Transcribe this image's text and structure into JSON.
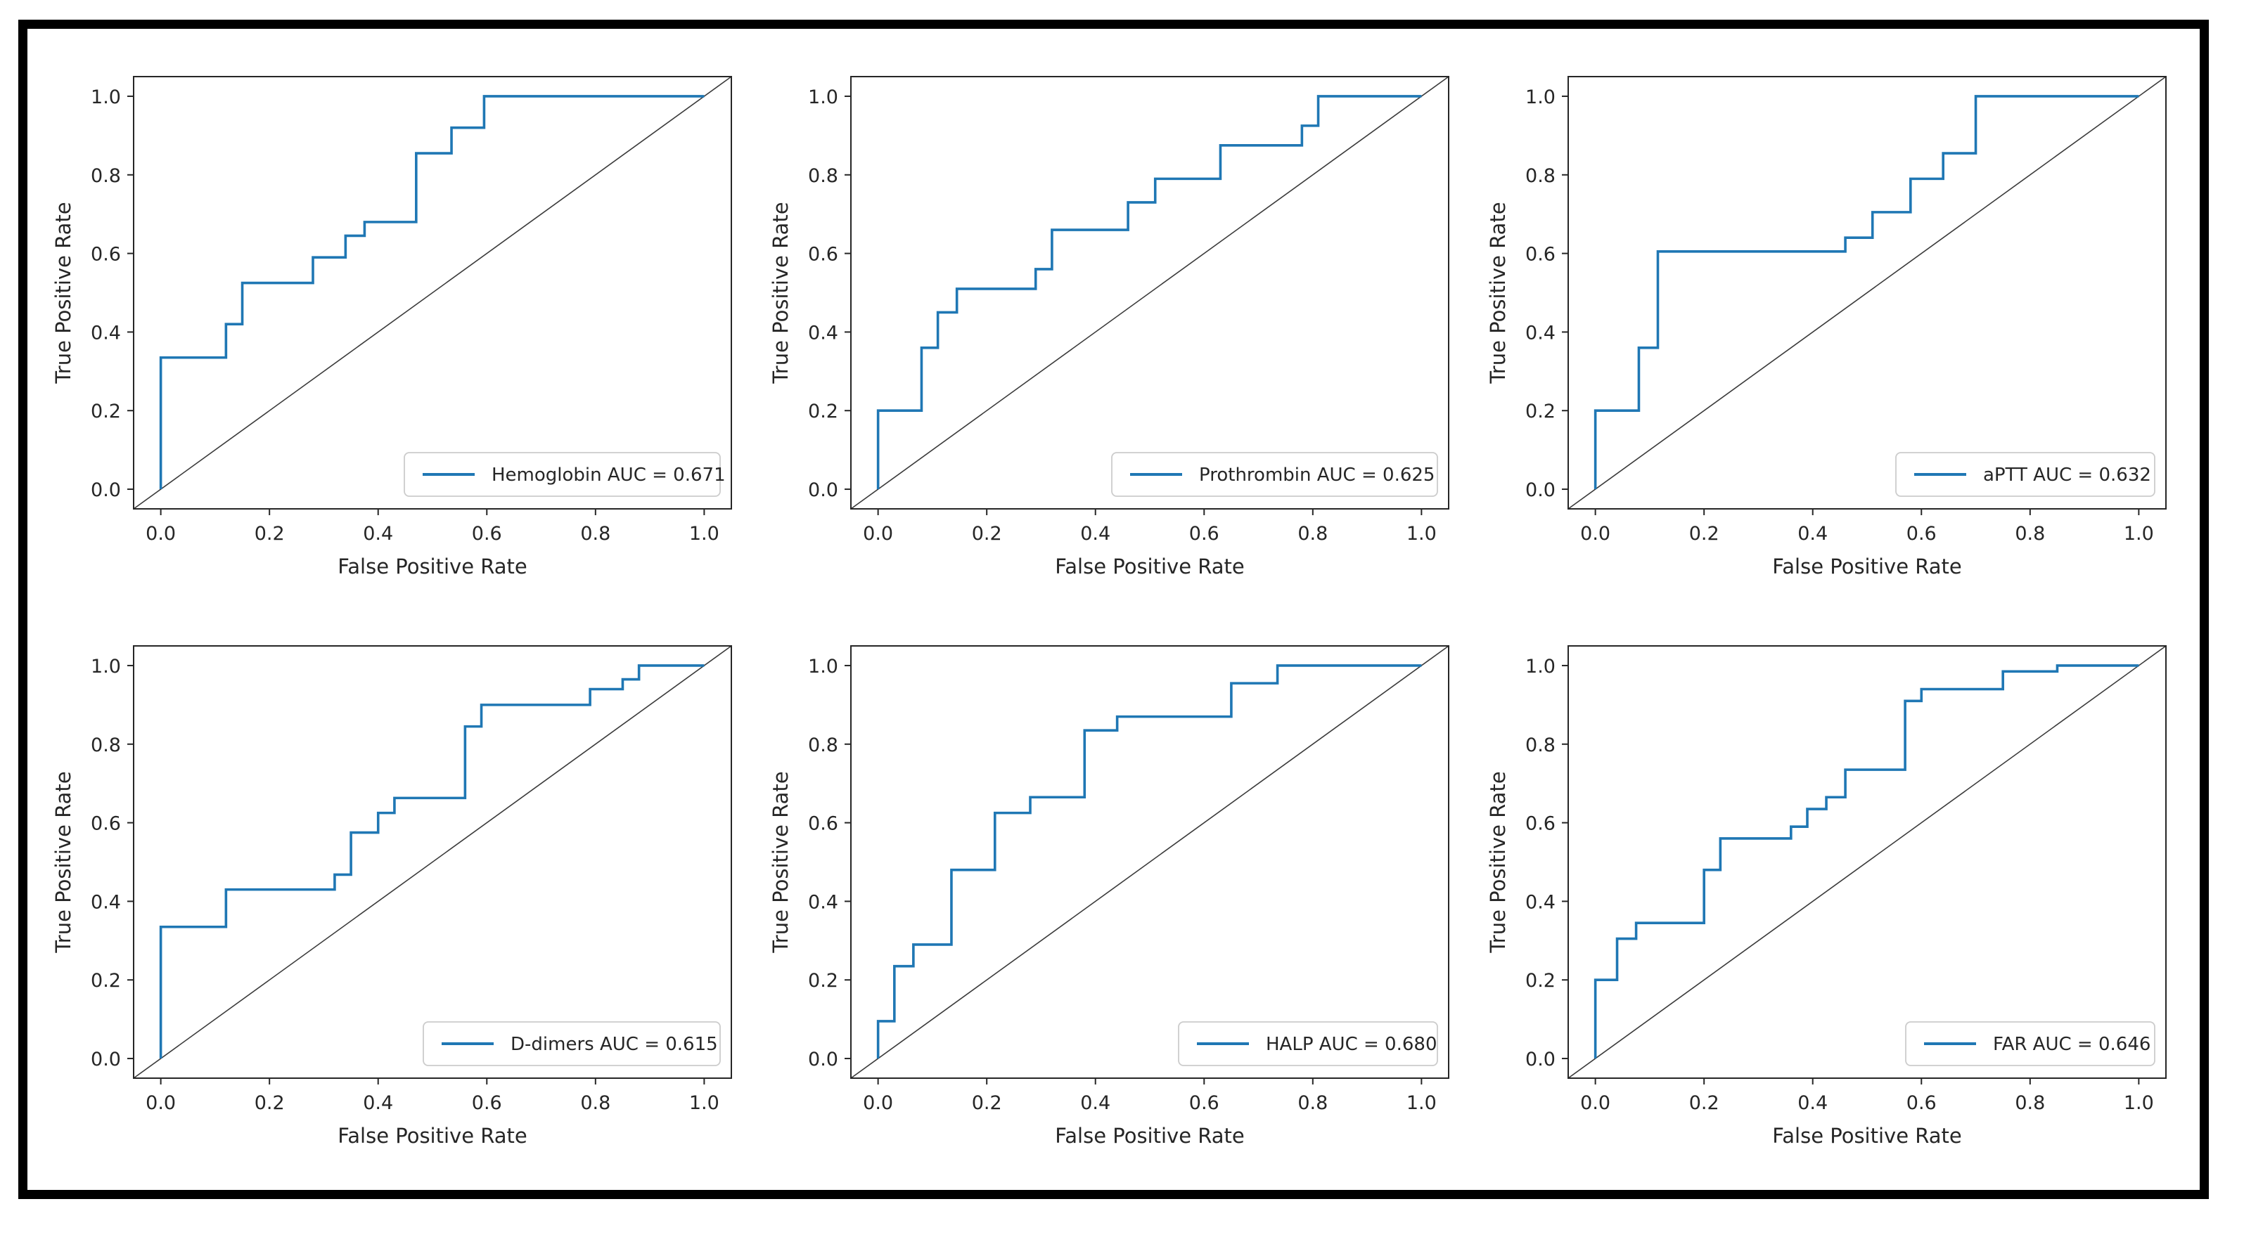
{
  "figure": {
    "background": "#ffffff",
    "outer_border_color": "#000000",
    "axis_color": "#262626",
    "tick_text_color": "#262626",
    "diagonal_color": "#3a3a3a",
    "accent_blue": "#1f77b4",
    "legend_border_color": "#cccccc",
    "legend_background": "#ffffff"
  },
  "chart_data": [
    {
      "type": "line",
      "name": "hemoglobin-roc",
      "xlabel": "False Positive Rate",
      "ylabel": "True Positive Rate",
      "xlim": [
        -0.05,
        1.05
      ],
      "ylim": [
        -0.05,
        1.05
      ],
      "xticks": [
        0.0,
        0.2,
        0.4,
        0.6,
        0.8,
        1.0
      ],
      "yticks": [
        0.0,
        0.2,
        0.4,
        0.6,
        0.8,
        1.0
      ],
      "xtick_labels": [
        "0.0",
        "0.2",
        "0.4",
        "0.6",
        "0.8",
        "1.0"
      ],
      "ytick_labels": [
        "0.0",
        "0.2",
        "0.4",
        "0.6",
        "0.8",
        "1.0"
      ],
      "grid": false,
      "legend": {
        "label": "Hemoglobin AUC = 0.671",
        "position": "lower right"
      },
      "diagonal_reference": true,
      "series": [
        {
          "name": "Hemoglobin",
          "auc": 0.671,
          "color": "#1f77b4",
          "points": [
            [
              0,
              0
            ],
            [
              0,
              0.335
            ],
            [
              0.12,
              0.335
            ],
            [
              0.12,
              0.42
            ],
            [
              0.15,
              0.42
            ],
            [
              0.15,
              0.525
            ],
            [
              0.28,
              0.525
            ],
            [
              0.28,
              0.59
            ],
            [
              0.34,
              0.59
            ],
            [
              0.34,
              0.645
            ],
            [
              0.375,
              0.645
            ],
            [
              0.375,
              0.68
            ],
            [
              0.47,
              0.68
            ],
            [
              0.47,
              0.855
            ],
            [
              0.535,
              0.855
            ],
            [
              0.535,
              0.92
            ],
            [
              0.595,
              0.92
            ],
            [
              0.595,
              1.0
            ],
            [
              1.0,
              1.0
            ]
          ]
        }
      ]
    },
    {
      "type": "line",
      "name": "prothrombin-roc",
      "xlabel": "False Positive Rate",
      "ylabel": "True Positive Rate",
      "xlim": [
        -0.05,
        1.05
      ],
      "ylim": [
        -0.05,
        1.05
      ],
      "xticks": [
        0.0,
        0.2,
        0.4,
        0.6,
        0.8,
        1.0
      ],
      "yticks": [
        0.0,
        0.2,
        0.4,
        0.6,
        0.8,
        1.0
      ],
      "xtick_labels": [
        "0.0",
        "0.2",
        "0.4",
        "0.6",
        "0.8",
        "1.0"
      ],
      "ytick_labels": [
        "0.0",
        "0.2",
        "0.4",
        "0.6",
        "0.8",
        "1.0"
      ],
      "grid": false,
      "legend": {
        "label": "Prothrombin AUC = 0.625",
        "position": "lower right"
      },
      "diagonal_reference": true,
      "series": [
        {
          "name": "Prothrombin",
          "auc": 0.625,
          "color": "#1f77b4",
          "points": [
            [
              0,
              0
            ],
            [
              0,
              0.2
            ],
            [
              0.08,
              0.2
            ],
            [
              0.08,
              0.36
            ],
            [
              0.11,
              0.36
            ],
            [
              0.11,
              0.45
            ],
            [
              0.145,
              0.45
            ],
            [
              0.145,
              0.51
            ],
            [
              0.29,
              0.51
            ],
            [
              0.29,
              0.56
            ],
            [
              0.32,
              0.56
            ],
            [
              0.32,
              0.66
            ],
            [
              0.46,
              0.66
            ],
            [
              0.46,
              0.73
            ],
            [
              0.51,
              0.73
            ],
            [
              0.51,
              0.79
            ],
            [
              0.63,
              0.79
            ],
            [
              0.63,
              0.875
            ],
            [
              0.78,
              0.875
            ],
            [
              0.78,
              0.925
            ],
            [
              0.81,
              0.925
            ],
            [
              0.81,
              1.0
            ],
            [
              1.0,
              1.0
            ]
          ]
        }
      ]
    },
    {
      "type": "line",
      "name": "aptt-roc",
      "xlabel": "False Positive Rate",
      "ylabel": "True Positive Rate",
      "xlim": [
        -0.05,
        1.05
      ],
      "ylim": [
        -0.05,
        1.05
      ],
      "xticks": [
        0.0,
        0.2,
        0.4,
        0.6,
        0.8,
        1.0
      ],
      "yticks": [
        0.0,
        0.2,
        0.4,
        0.6,
        0.8,
        1.0
      ],
      "xtick_labels": [
        "0.0",
        "0.2",
        "0.4",
        "0.6",
        "0.8",
        "1.0"
      ],
      "ytick_labels": [
        "0.0",
        "0.2",
        "0.4",
        "0.6",
        "0.8",
        "1.0"
      ],
      "grid": false,
      "legend": {
        "label": "aPTT AUC = 0.632",
        "position": "lower right"
      },
      "diagonal_reference": true,
      "series": [
        {
          "name": "aPTT",
          "auc": 0.632,
          "color": "#1f77b4",
          "points": [
            [
              0,
              0
            ],
            [
              0,
              0.2
            ],
            [
              0.08,
              0.2
            ],
            [
              0.08,
              0.36
            ],
            [
              0.115,
              0.36
            ],
            [
              0.115,
              0.605
            ],
            [
              0.46,
              0.605
            ],
            [
              0.46,
              0.64
            ],
            [
              0.51,
              0.64
            ],
            [
              0.51,
              0.705
            ],
            [
              0.58,
              0.705
            ],
            [
              0.58,
              0.79
            ],
            [
              0.64,
              0.79
            ],
            [
              0.64,
              0.855
            ],
            [
              0.7,
              0.855
            ],
            [
              0.7,
              1.0
            ],
            [
              1.0,
              1.0
            ]
          ]
        }
      ]
    },
    {
      "type": "line",
      "name": "d-dimers-roc",
      "xlabel": "False Positive Rate",
      "ylabel": "True Positive Rate",
      "xlim": [
        -0.05,
        1.05
      ],
      "ylim": [
        -0.05,
        1.05
      ],
      "xticks": [
        0.0,
        0.2,
        0.4,
        0.6,
        0.8,
        1.0
      ],
      "yticks": [
        0.0,
        0.2,
        0.4,
        0.6,
        0.8,
        1.0
      ],
      "xtick_labels": [
        "0.0",
        "0.2",
        "0.4",
        "0.6",
        "0.8",
        "1.0"
      ],
      "ytick_labels": [
        "0.0",
        "0.2",
        "0.4",
        "0.6",
        "0.8",
        "1.0"
      ],
      "grid": false,
      "legend": {
        "label": "D-dimers AUC = 0.615",
        "position": "lower right"
      },
      "diagonal_reference": true,
      "series": [
        {
          "name": "D-dimers",
          "auc": 0.615,
          "color": "#1f77b4",
          "points": [
            [
              0,
              0
            ],
            [
              0,
              0.335
            ],
            [
              0.12,
              0.335
            ],
            [
              0.12,
              0.43
            ],
            [
              0.32,
              0.43
            ],
            [
              0.32,
              0.468
            ],
            [
              0.35,
              0.468
            ],
            [
              0.35,
              0.575
            ],
            [
              0.4,
              0.575
            ],
            [
              0.4,
              0.625
            ],
            [
              0.43,
              0.625
            ],
            [
              0.43,
              0.663
            ],
            [
              0.56,
              0.663
            ],
            [
              0.56,
              0.845
            ],
            [
              0.59,
              0.845
            ],
            [
              0.59,
              0.9
            ],
            [
              0.79,
              0.9
            ],
            [
              0.79,
              0.94
            ],
            [
              0.85,
              0.94
            ],
            [
              0.85,
              0.965
            ],
            [
              0.88,
              0.965
            ],
            [
              0.88,
              1.0
            ],
            [
              1.0,
              1.0
            ]
          ]
        }
      ]
    },
    {
      "type": "line",
      "name": "halp-roc",
      "xlabel": "False Positive Rate",
      "ylabel": "True Positive Rate",
      "xlim": [
        -0.05,
        1.05
      ],
      "ylim": [
        -0.05,
        1.05
      ],
      "xticks": [
        0.0,
        0.2,
        0.4,
        0.6,
        0.8,
        1.0
      ],
      "yticks": [
        0.0,
        0.2,
        0.4,
        0.6,
        0.8,
        1.0
      ],
      "xtick_labels": [
        "0.0",
        "0.2",
        "0.4",
        "0.6",
        "0.8",
        "1.0"
      ],
      "ytick_labels": [
        "0.0",
        "0.2",
        "0.4",
        "0.6",
        "0.8",
        "1.0"
      ],
      "grid": false,
      "legend": {
        "label": "HALP AUC = 0.680",
        "position": "lower right"
      },
      "diagonal_reference": true,
      "series": [
        {
          "name": "HALP",
          "auc": 0.68,
          "color": "#1f77b4",
          "points": [
            [
              0,
              0
            ],
            [
              0,
              0.095
            ],
            [
              0.03,
              0.095
            ],
            [
              0.03,
              0.235
            ],
            [
              0.065,
              0.235
            ],
            [
              0.065,
              0.29
            ],
            [
              0.135,
              0.29
            ],
            [
              0.135,
              0.48
            ],
            [
              0.215,
              0.48
            ],
            [
              0.215,
              0.625
            ],
            [
              0.28,
              0.625
            ],
            [
              0.28,
              0.665
            ],
            [
              0.38,
              0.665
            ],
            [
              0.38,
              0.835
            ],
            [
              0.44,
              0.835
            ],
            [
              0.44,
              0.87
            ],
            [
              0.65,
              0.87
            ],
            [
              0.65,
              0.955
            ],
            [
              0.735,
              0.955
            ],
            [
              0.735,
              1.0
            ],
            [
              1.0,
              1.0
            ]
          ]
        }
      ]
    },
    {
      "type": "line",
      "name": "far-roc",
      "xlabel": "False Positive Rate",
      "ylabel": "True Positive Rate",
      "xlim": [
        -0.05,
        1.05
      ],
      "ylim": [
        -0.05,
        1.05
      ],
      "xticks": [
        0.0,
        0.2,
        0.4,
        0.6,
        0.8,
        1.0
      ],
      "yticks": [
        0.0,
        0.2,
        0.4,
        0.6,
        0.8,
        1.0
      ],
      "xtick_labels": [
        "0.0",
        "0.2",
        "0.4",
        "0.6",
        "0.8",
        "1.0"
      ],
      "ytick_labels": [
        "0.0",
        "0.2",
        "0.4",
        "0.6",
        "0.8",
        "1.0"
      ],
      "grid": false,
      "legend": {
        "label": "FAR AUC = 0.646",
        "position": "lower right"
      },
      "diagonal_reference": true,
      "series": [
        {
          "name": "FAR",
          "auc": 0.646,
          "color": "#1f77b4",
          "points": [
            [
              0,
              0
            ],
            [
              0,
              0.2
            ],
            [
              0.04,
              0.2
            ],
            [
              0.04,
              0.305
            ],
            [
              0.075,
              0.305
            ],
            [
              0.075,
              0.345
            ],
            [
              0.2,
              0.345
            ],
            [
              0.2,
              0.48
            ],
            [
              0.23,
              0.48
            ],
            [
              0.23,
              0.56
            ],
            [
              0.36,
              0.56
            ],
            [
              0.36,
              0.59
            ],
            [
              0.39,
              0.59
            ],
            [
              0.39,
              0.635
            ],
            [
              0.425,
              0.635
            ],
            [
              0.425,
              0.665
            ],
            [
              0.46,
              0.665
            ],
            [
              0.46,
              0.735
            ],
            [
              0.57,
              0.735
            ],
            [
              0.57,
              0.91
            ],
            [
              0.6,
              0.91
            ],
            [
              0.6,
              0.94
            ],
            [
              0.75,
              0.94
            ],
            [
              0.75,
              0.985
            ],
            [
              0.85,
              0.985
            ],
            [
              0.85,
              1.0
            ],
            [
              1.0,
              1.0
            ]
          ]
        }
      ]
    }
  ]
}
